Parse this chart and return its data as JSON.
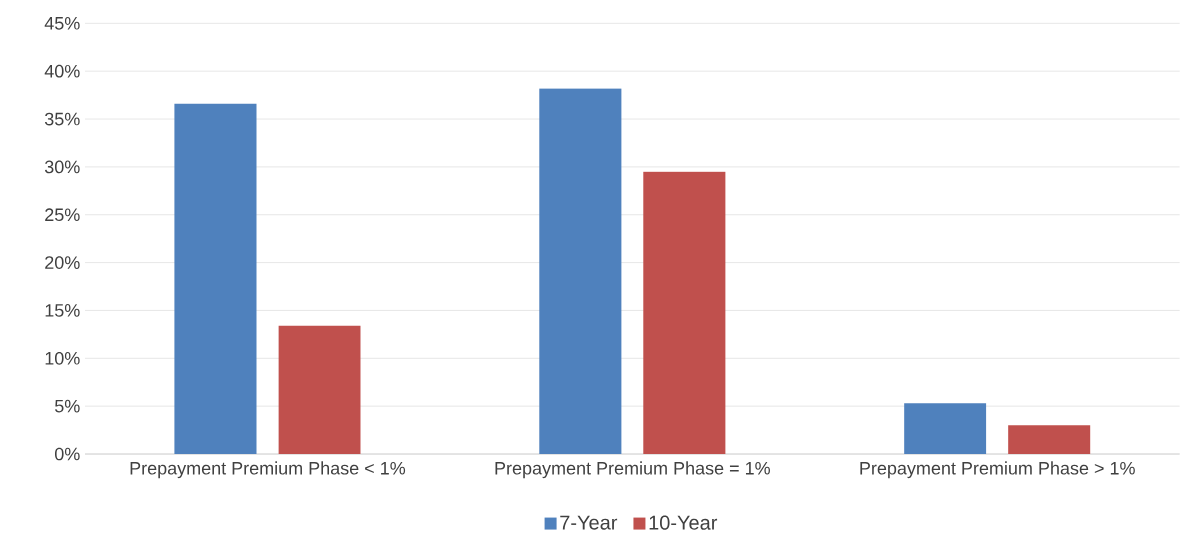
{
  "chart_data": {
    "type": "bar",
    "categories": [
      "Prepayment Premium Phase < 1%",
      "Prepayment Premium Phase = 1%",
      "Prepayment Premium Phase > 1%"
    ],
    "series": [
      {
        "name": "7-Year",
        "color": "#4f81bd",
        "values": [
          36.6,
          38.2,
          5.3
        ]
      },
      {
        "name": "10-Year",
        "color": "#c0504d",
        "values": [
          13.4,
          29.5,
          3.0
        ]
      }
    ],
    "ylim": [
      0,
      45
    ],
    "yticks": [
      {
        "value": 0,
        "label": "0%"
      },
      {
        "value": 5,
        "label": "5%"
      },
      {
        "value": 10,
        "label": "10%"
      },
      {
        "value": 15,
        "label": "15%"
      },
      {
        "value": 20,
        "label": "20%"
      },
      {
        "value": 25,
        "label": "25%"
      },
      {
        "value": 30,
        "label": "30%"
      },
      {
        "value": 35,
        "label": "35%"
      },
      {
        "value": 40,
        "label": "40%"
      },
      {
        "value": 45,
        "label": "45%"
      }
    ],
    "grid": "y",
    "legend": "bottom"
  }
}
